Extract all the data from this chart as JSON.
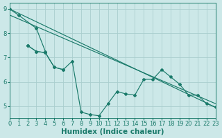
{
  "bg_color": "#cce8e8",
  "line_color": "#1a7a6a",
  "grid_color": "#aacece",
  "xlim": [
    0,
    23
  ],
  "ylim": [
    4.5,
    9.25
  ],
  "yticks": [
    5,
    6,
    7,
    8,
    9
  ],
  "xticks": [
    0,
    1,
    2,
    3,
    4,
    5,
    6,
    7,
    8,
    9,
    10,
    11,
    12,
    13,
    14,
    15,
    16,
    17,
    18,
    19,
    20,
    21,
    22,
    23
  ],
  "xlabel": "Humidex (Indice chaleur)",
  "xlabel_fontsize": 7.5,
  "tick_fontsize": 6,
  "series": [
    [
      9.0,
      8.75,
      null,
      8.2,
      7.25,
      null,
      null,
      null,
      null,
      null,
      null,
      null,
      null,
      null,
      null,
      null,
      null,
      null,
      null,
      null,
      null,
      null,
      null,
      null
    ],
    [
      null,
      null,
      7.5,
      7.25,
      7.2,
      6.6,
      6.5,
      null,
      null,
      null,
      null,
      null,
      null,
      null,
      null,
      null,
      null,
      null,
      null,
      null,
      null,
      null,
      null,
      null
    ],
    [
      null,
      null,
      7.5,
      7.25,
      7.2,
      6.6,
      6.5,
      6.85,
      4.75,
      4.65,
      4.6,
      5.1,
      5.6,
      5.5,
      5.45,
      6.1,
      6.1,
      6.5,
      6.2,
      5.9,
      5.45,
      5.45,
      5.1,
      4.95
    ]
  ],
  "trend_lines": [
    [
      [
        0,
        23
      ],
      [
        9.0,
        4.95
      ]
    ],
    [
      [
        0,
        23
      ],
      [
        8.75,
        5.1
      ]
    ]
  ]
}
